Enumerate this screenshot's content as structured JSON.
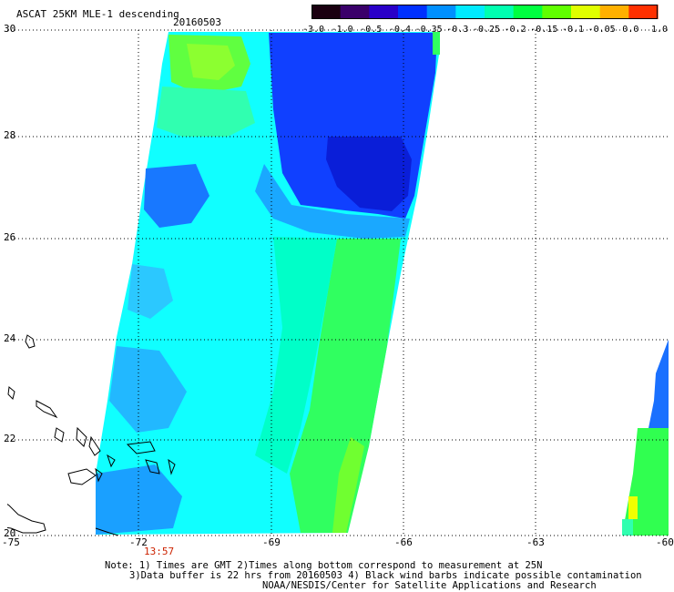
{
  "title": "ASCAT 25KM MLE-1 descending",
  "date": "20160503",
  "colorbar": {
    "labels": [
      "-3.0",
      "-1.0",
      "-0.5",
      "-0.4",
      "-0.35",
      "-0.3",
      "-0.25",
      "-0.2",
      "-0.15",
      "-0.1",
      "-0.05",
      "0.0",
      "1.0"
    ],
    "colors": [
      "#1a0010",
      "#3a006a",
      "#2a00c8",
      "#0030ff",
      "#0090ff",
      "#00eaff",
      "#00ffb0",
      "#00ff40",
      "#60ff00",
      "#e0ff00",
      "#ffb000",
      "#ff3000"
    ]
  },
  "axes": {
    "x_ticks": [
      "-75",
      "-72",
      "-69",
      "-66",
      "-63",
      "-60"
    ],
    "y_ticks": [
      "30",
      "28",
      "26",
      "24",
      "22",
      "20"
    ],
    "time_label": "13:57"
  },
  "map_extent": {
    "lon": [
      -75,
      -60
    ],
    "lat": [
      20,
      30
    ]
  },
  "notes": {
    "line1": "Note: 1) Times are GMT 2)Times along bottom correspond to measurement at 25N",
    "line2": "3)Data buffer is 22 hrs from 20160503 4) Black wind barbs indicate possible contamination",
    "line3": "NOAA/NESDIS/Center for Satellite Applications and Research"
  },
  "swath_colors": {
    "deep_blue": "#0a22e0",
    "mid_blue": "#1060ff",
    "sky_blue": "#1aa0ff",
    "cyan": "#10ffff",
    "aqua": "#00ffd0",
    "green": "#30ff50",
    "lime": "#80ff20",
    "yellow": "#f0ff00"
  }
}
